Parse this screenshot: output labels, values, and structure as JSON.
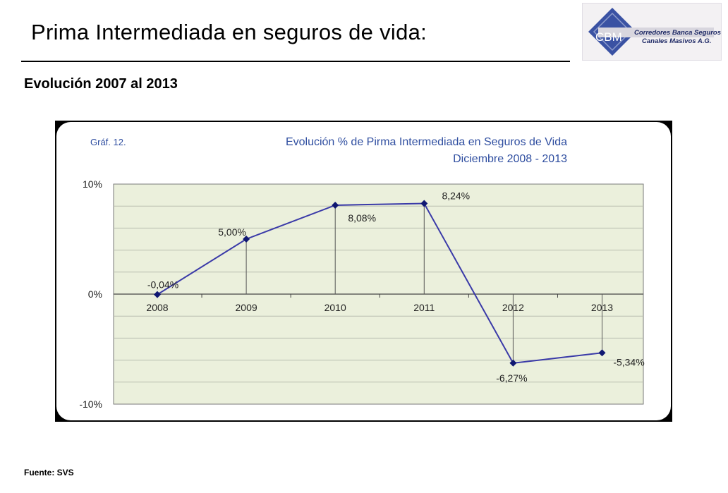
{
  "slide": {
    "title": "Prima Intermediada en seguros de vida:",
    "subtitle": "Evolución 2007 al 2013",
    "source": "Fuente: SVS"
  },
  "logo": {
    "abbr": "CBM",
    "line1": "Corredores Banca Seguros y",
    "line2": "Canales Masivos A.G."
  },
  "colors": {
    "accent": "#3a52a3",
    "series_line": "#3a3aa8",
    "marker": "#101872",
    "plot_bg": "#ebf0dc",
    "title_text": "#2f4ea0"
  },
  "chart_data": {
    "type": "line",
    "figure_label": "Gráf. 12.",
    "title": "Evolución % de Pirma Intermediada en Seguros de Vida",
    "subtitle": "Diciembre 2008 - 2013",
    "categories": [
      "2008",
      "2009",
      "2010",
      "2011",
      "2012",
      "2013"
    ],
    "series": [
      {
        "values": [
          -0.04,
          5.0,
          8.08,
          8.24,
          -6.27,
          -5.34
        ]
      }
    ],
    "data_labels": [
      "-0,04%",
      "5,00%",
      "8,08%",
      "8,24%",
      "-6,27%",
      "-5,34%"
    ],
    "ylim": [
      -10,
      10
    ],
    "y_ticks": [
      10,
      0,
      -10
    ],
    "y_tick_labels": [
      "10%",
      "0%",
      "-10%"
    ],
    "drop_lines": true,
    "grid": true,
    "legend": "none"
  }
}
